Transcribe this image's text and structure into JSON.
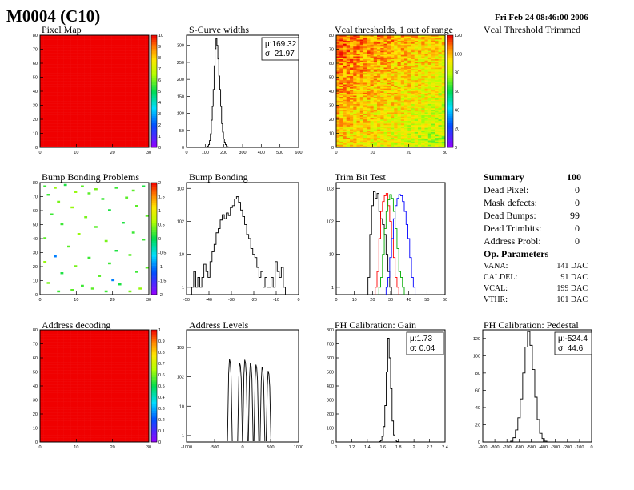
{
  "header": {
    "title": "M0004 (C10)",
    "date": "Fri Feb 24 08:46:00 2006"
  },
  "colors": {
    "frame": "#000000",
    "hist_black": "#000000",
    "hist_red": "#ff0000",
    "hist_green": "#00aa00",
    "hist_blue": "#0000ff"
  },
  "trimmed_label": "Vcal Threshold Trimmed",
  "summary": {
    "title": "Summary",
    "total": "100",
    "rows": [
      {
        "label": "Dead Pixel:",
        "value": "0"
      },
      {
        "label": "Mask defects:",
        "value": "0"
      },
      {
        "label": "Dead Bumps:",
        "value": "99"
      },
      {
        "label": "Dead Trimbits:",
        "value": "0"
      },
      {
        "label": "Address Probl:",
        "value": "0"
      }
    ]
  },
  "op_params": {
    "title": "Op. Parameters",
    "rows": [
      {
        "label": "VANA:",
        "value": "141 DAC"
      },
      {
        "label": "CALDEL:",
        "value": "91 DAC"
      },
      {
        "label": "VCAL:",
        "value": "199 DAC"
      },
      {
        "label": "VTHR:",
        "value": "101 DAC"
      }
    ]
  },
  "chart_data": [
    {
      "id": "pixel-map",
      "type": "heatmap",
      "title": "Pixel Map",
      "xlim": [
        0,
        32
      ],
      "ylim": [
        0,
        80
      ],
      "xticks": [
        "0",
        "10",
        "20",
        "30"
      ],
      "yticks": [
        "0",
        "10",
        "20",
        "30",
        "40",
        "50",
        "60",
        "70",
        "80"
      ],
      "zticks": [
        "0",
        "1",
        "2",
        "3",
        "4",
        "5",
        "6",
        "7",
        "8",
        "9",
        "10"
      ],
      "zlim": [
        0,
        10
      ],
      "fill_value": 10,
      "dead_pixels": 0
    },
    {
      "id": "scurve-widths",
      "type": "bar",
      "title": "S-Curve widths",
      "xlim": [
        0,
        600
      ],
      "ylim": [
        0,
        330
      ],
      "xticks": [
        "0",
        "100",
        "200",
        "300",
        "400",
        "500",
        "600"
      ],
      "yticks": [
        "0",
        "50",
        "100",
        "150",
        "200",
        "250",
        "300"
      ],
      "stats": [
        {
          "label": "μ:169.32"
        },
        {
          "label": "σ: 21.97"
        }
      ],
      "x": [
        110,
        115,
        120,
        125,
        130,
        135,
        140,
        145,
        150,
        155,
        160,
        165,
        170,
        175,
        180,
        185,
        190,
        195,
        200,
        205,
        210,
        215,
        220,
        225,
        230
      ],
      "values": [
        2,
        4,
        8,
        20,
        40,
        80,
        120,
        170,
        240,
        290,
        320,
        300,
        260,
        210,
        170,
        120,
        70,
        45,
        25,
        15,
        8,
        4,
        2,
        1,
        0
      ]
    },
    {
      "id": "vcal-thresholds",
      "type": "heatmap",
      "title": "Vcal thresholds, 1 out of range",
      "xlim": [
        0,
        32
      ],
      "ylim": [
        0,
        80
      ],
      "xticks": [
        "0",
        "10",
        "20",
        "30"
      ],
      "yticks": [
        "0",
        "10",
        "20",
        "30",
        "40",
        "50",
        "60",
        "70",
        "80"
      ],
      "zticks": [
        "0",
        "20",
        "40",
        "60",
        "80",
        "100",
        "120"
      ],
      "zlim": [
        0,
        130
      ],
      "gradient": {
        "top_left": 120,
        "bottom_right": 85
      },
      "out_of_range": 1
    },
    {
      "id": "bump-bonding-problems",
      "type": "heatmap",
      "title": "Bump Bonding Problems",
      "xlim": [
        0,
        32
      ],
      "ylim": [
        0,
        80
      ],
      "xticks": [
        "0",
        "10",
        "20",
        "30"
      ],
      "yticks": [
        "0",
        "10",
        "20",
        "30",
        "40",
        "50",
        "60",
        "70",
        "80"
      ],
      "zticks": [
        "-2",
        "-1.5",
        "-1",
        "-0.5",
        "0",
        "0.5",
        "1",
        "1.5",
        "2"
      ],
      "zlim": [
        -2,
        2
      ],
      "points": [
        {
          "x": 1,
          "y": 77,
          "z": 0.2
        },
        {
          "x": 4,
          "y": 76,
          "z": 0.5
        },
        {
          "x": 7,
          "y": 78,
          "z": 0.1
        },
        {
          "x": 12,
          "y": 77,
          "z": 0.3
        },
        {
          "x": 16,
          "y": 75,
          "z": 0.4
        },
        {
          "x": 2,
          "y": 71,
          "z": 0.2
        },
        {
          "x": 10,
          "y": 73,
          "z": 0.5
        },
        {
          "x": 14,
          "y": 72,
          "z": 0.3
        },
        {
          "x": 22,
          "y": 76,
          "z": 0.2
        },
        {
          "x": 27,
          "y": 74,
          "z": 0.3
        },
        {
          "x": 30,
          "y": 77,
          "z": 0.1
        },
        {
          "x": 5,
          "y": 66,
          "z": 0.4
        },
        {
          "x": 18,
          "y": 68,
          "z": 0.2
        },
        {
          "x": 25,
          "y": 69,
          "z": 0.3
        },
        {
          "x": 9,
          "y": 62,
          "z": 0.5
        },
        {
          "x": 20,
          "y": 60,
          "z": 0.1
        },
        {
          "x": 28,
          "y": 63,
          "z": 0.3
        },
        {
          "x": 3,
          "y": 57,
          "z": 0.2
        },
        {
          "x": 13,
          "y": 55,
          "z": 0.4
        },
        {
          "x": 31,
          "y": 56,
          "z": 0.3
        },
        {
          "x": 6,
          "y": 50,
          "z": 0.2
        },
        {
          "x": 16,
          "y": 48,
          "z": 0.3
        },
        {
          "x": 24,
          "y": 51,
          "z": 0.1
        },
        {
          "x": 11,
          "y": 43,
          "z": 0.5
        },
        {
          "x": 27,
          "y": 44,
          "z": 0.2
        },
        {
          "x": 1,
          "y": 40,
          "z": 0.3
        },
        {
          "x": 19,
          "y": 38,
          "z": 0.4
        },
        {
          "x": 30,
          "y": 39,
          "z": 0.2
        },
        {
          "x": 8,
          "y": 34,
          "z": 0.3
        },
        {
          "x": 22,
          "y": 31,
          "z": 0.1
        },
        {
          "x": 4,
          "y": 27,
          "z": -1.0
        },
        {
          "x": 14,
          "y": 26,
          "z": 0.2
        },
        {
          "x": 26,
          "y": 28,
          "z": 0.3
        },
        {
          "x": 1,
          "y": 23,
          "z": 0.5
        },
        {
          "x": 10,
          "y": 20,
          "z": 0.4
        },
        {
          "x": 20,
          "y": 22,
          "z": 0.2
        },
        {
          "x": 31,
          "y": 19,
          "z": 0.3
        },
        {
          "x": 6,
          "y": 15,
          "z": 0.1
        },
        {
          "x": 17,
          "y": 13,
          "z": 0.3
        },
        {
          "x": 28,
          "y": 16,
          "z": 0.2
        },
        {
          "x": 2,
          "y": 8,
          "z": 0.4
        },
        {
          "x": 12,
          "y": 6,
          "z": 0.2
        },
        {
          "x": 15,
          "y": 4,
          "z": 0.3
        },
        {
          "x": 23,
          "y": 7,
          "z": 0.1
        },
        {
          "x": 29,
          "y": 4,
          "z": 0.5
        },
        {
          "x": 5,
          "y": 2,
          "z": 0.2
        },
        {
          "x": 9,
          "y": 3,
          "z": 0.3
        },
        {
          "x": 19,
          "y": 2,
          "z": 0.2
        },
        {
          "x": 21,
          "y": 10,
          "z": -1.0
        },
        {
          "x": 26,
          "y": 2,
          "z": 0.4
        }
      ]
    },
    {
      "id": "bump-bonding",
      "type": "bar",
      "title": "Bump Bonding",
      "scale": "log",
      "xlim": [
        -50,
        5
      ],
      "ylim": [
        0.6,
        1500
      ],
      "xticks": [
        "-50",
        "-40",
        "-30",
        "-20",
        "-10",
        "0"
      ],
      "yticks": [
        "1",
        "10",
        "10^2",
        "10^3"
      ],
      "x": [
        -47,
        -46,
        -45,
        -44,
        -43,
        -42,
        -41,
        -40,
        -39,
        -38,
        -37,
        -36,
        -35,
        -34,
        -33,
        -32,
        -31,
        -30,
        -29,
        -28,
        -27,
        -26,
        -25,
        -24,
        -23,
        -22,
        -21,
        -20,
        -19,
        -18,
        -17,
        -16,
        -15,
        -14,
        -13,
        -12,
        -11,
        -10,
        -9,
        -8,
        -7,
        -6,
        -5,
        -4,
        -3,
        -2
      ],
      "values": [
        1,
        3,
        1,
        2,
        1,
        2,
        5,
        3,
        2,
        6,
        12,
        20,
        45,
        60,
        110,
        160,
        120,
        180,
        150,
        260,
        300,
        480,
        560,
        380,
        220,
        140,
        80,
        40,
        30,
        15,
        10,
        8,
        4,
        2,
        3,
        1,
        2,
        1,
        1,
        2,
        1,
        6,
        3,
        2,
        4,
        1
      ]
    },
    {
      "id": "trim-bit-test",
      "type": "line",
      "title": "Trim Bit Test",
      "scale": "log",
      "xlim": [
        0,
        60
      ],
      "ylim": [
        0.6,
        1500
      ],
      "xticks": [
        "0",
        "10",
        "20",
        "30",
        "40",
        "50",
        "60"
      ],
      "yticks": [
        "1",
        "10",
        "10^2",
        "10^3"
      ],
      "series": [
        {
          "color": "#000000",
          "x": [
            18,
            19,
            20,
            21,
            22,
            23,
            24,
            25,
            26,
            27,
            28,
            29,
            30
          ],
          "values": [
            2,
            40,
            300,
            800,
            500,
            700,
            200,
            120,
            80,
            40,
            10,
            3,
            1
          ]
        },
        {
          "color": "#ff0000",
          "x": [
            22,
            23,
            24,
            25,
            26,
            27,
            28,
            29,
            30,
            31,
            32,
            33,
            34
          ],
          "values": [
            1,
            3,
            30,
            200,
            400,
            600,
            700,
            300,
            100,
            30,
            8,
            2,
            1
          ]
        },
        {
          "color": "#00aa00",
          "x": [
            24,
            25,
            26,
            27,
            28,
            29,
            30,
            31,
            32,
            33,
            34,
            35,
            36,
            37
          ],
          "values": [
            1,
            2,
            10,
            60,
            200,
            450,
            650,
            500,
            200,
            60,
            15,
            3,
            2,
            1
          ]
        },
        {
          "color": "#0000ff",
          "x": [
            28,
            29,
            30,
            31,
            32,
            33,
            34,
            35,
            36,
            37,
            38,
            39,
            40,
            41,
            42,
            43
          ],
          "values": [
            1,
            2,
            8,
            30,
            120,
            300,
            500,
            650,
            600,
            400,
            200,
            80,
            30,
            8,
            2,
            1
          ]
        }
      ]
    },
    {
      "id": "address-decoding",
      "type": "heatmap",
      "title": "Address decoding",
      "xlim": [
        0,
        32
      ],
      "ylim": [
        0,
        80
      ],
      "xticks": [
        "0",
        "10",
        "20",
        "30"
      ],
      "yticks": [
        "0",
        "10",
        "20",
        "30",
        "40",
        "50",
        "60",
        "70",
        "80"
      ],
      "zticks": [
        "0",
        "0.1",
        "0.2",
        "0.3",
        "0.4",
        "0.5",
        "0.6",
        "0.7",
        "0.8",
        "0.9",
        "1"
      ],
      "zlim": [
        0,
        1
      ],
      "fill_value": 1
    },
    {
      "id": "address-levels",
      "type": "bar",
      "title": "Address Levels",
      "scale": "log",
      "xlim": [
        -1200,
        1000
      ],
      "ylim": [
        0.6,
        4000
      ],
      "xticks": [
        "-1000",
        "-500",
        "0",
        "500",
        "1000"
      ],
      "yticks": [
        "1",
        "10",
        "10^2",
        "10^3"
      ],
      "peaks": [
        {
          "x": -350,
          "value": 400
        },
        {
          "x": -150,
          "value": 300
        },
        {
          "x": -50,
          "value": 380
        },
        {
          "x": 60,
          "value": 300
        },
        {
          "x": 170,
          "value": 260
        },
        {
          "x": 290,
          "value": 220
        },
        {
          "x": 410,
          "value": 160
        }
      ]
    },
    {
      "id": "ph-gain",
      "type": "bar",
      "title": "PH Calibration: Gain",
      "xlim": [
        1,
        2.5
      ],
      "ylim": [
        0,
        800
      ],
      "xticks": [
        "1",
        "1.2",
        "1.4",
        "1.6",
        "1.8",
        "2",
        "2.2",
        "2.4"
      ],
      "yticks": [
        "0",
        "100",
        "200",
        "300",
        "400",
        "500",
        "600",
        "700",
        "800"
      ],
      "stats": [
        {
          "label": "μ:1.73"
        },
        {
          "label": "σ: 0.04"
        }
      ],
      "x": [
        1.6,
        1.62,
        1.64,
        1.66,
        1.68,
        1.7,
        1.72,
        1.74,
        1.76,
        1.78,
        1.8,
        1.82,
        1.84
      ],
      "values": [
        3,
        10,
        40,
        110,
        260,
        500,
        740,
        600,
        380,
        150,
        50,
        12,
        3
      ]
    },
    {
      "id": "ph-pedestal",
      "type": "bar",
      "title": "PH Calibration: Pedestal",
      "xlim": [
        -900,
        0
      ],
      "ylim": [
        0,
        130
      ],
      "xticks": [
        "-900",
        "-800",
        "-700",
        "-600",
        "-500",
        "-400",
        "-300",
        "-200",
        "-100",
        "0"
      ],
      "yticks": [
        "0",
        "20",
        "40",
        "60",
        "80",
        "100",
        "120"
      ],
      "stats": [
        {
          "label": "μ:-524.4"
        },
        {
          "label": "σ: 44.6"
        }
      ],
      "x": [
        -660,
        -640,
        -620,
        -600,
        -580,
        -560,
        -540,
        -520,
        -500,
        -480,
        -460,
        -440,
        -420,
        -400,
        -380
      ],
      "values": [
        1,
        5,
        14,
        28,
        50,
        80,
        110,
        128,
        112,
        84,
        52,
        26,
        10,
        4,
        1
      ]
    }
  ]
}
